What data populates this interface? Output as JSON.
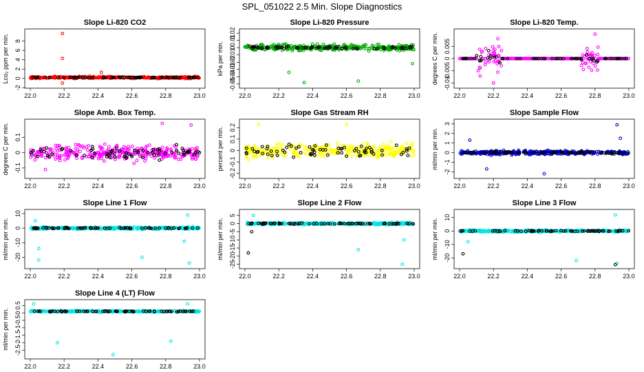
{
  "page_title": "SPL_051022  2.5 Min. Slope Diagnostics",
  "colors": {
    "black": "#000000"
  },
  "chart_data": [
    {
      "type": "scatter",
      "title": "Slope Li-820 CO2",
      "xlabel": "",
      "ylabel": "Lco₂ ppm per min.",
      "xlim": [
        22.0,
        23.0
      ],
      "ylim": [
        -1.5,
        10.0
      ],
      "xticks": [
        "22.0",
        "22.2",
        "22.4",
        "22.6",
        "22.8",
        "23.0"
      ],
      "yticks": [
        -2,
        0,
        2,
        4,
        6,
        8
      ],
      "series": [
        {
          "color": "#ff0000",
          "spread": 0.35,
          "center": 0.2,
          "points": [
            [
              22.19,
              9.6
            ],
            [
              22.19,
              4.3
            ],
            [
              22.19,
              -1.0
            ],
            [
              22.42,
              1.3
            ]
          ]
        },
        {
          "color": "#000000",
          "spread": 0.15,
          "center": 0.2,
          "points": []
        }
      ]
    },
    {
      "type": "scatter",
      "title": "Slope Li-820 Pressure",
      "xlabel": "",
      "ylabel": "kPa per min.",
      "xlim": [
        22.0,
        23.0
      ],
      "ylim": [
        -0.052,
        0.022
      ],
      "xticks": [
        "22.0",
        "22.2",
        "22.4",
        "22.6",
        "22.8",
        "23.0"
      ],
      "yticks": [
        -0.05,
        -0.04,
        -0.03,
        -0.02,
        -0.01,
        0.0,
        0.01,
        0.02
      ],
      "series": [
        {
          "color": "#00aa00",
          "spread": 0.007,
          "center": 0.0,
          "points": [
            [
              22.35,
              -0.048
            ],
            [
              22.67,
              -0.046
            ],
            [
              22.26,
              -0.034
            ],
            [
              22.99,
              -0.022
            ]
          ]
        },
        {
          "color": "#000000",
          "spread": 0.003,
          "center": 0.0,
          "points": []
        }
      ]
    },
    {
      "type": "scatter",
      "title": "Slope Li-820 Temp.",
      "xlabel": "",
      "ylabel": "degrees C per min.",
      "xlim": [
        22.0,
        23.0
      ],
      "ylim": [
        -0.011,
        0.011
      ],
      "xticks": [
        "22.0",
        "22.2",
        "22.4",
        "22.6",
        "22.8",
        "23.0"
      ],
      "yticks": [
        -0.01,
        -0.005,
        0.0,
        0.005
      ],
      "series": [
        {
          "color": "#ff00ff",
          "spread": 0.0,
          "center": 0.0,
          "bursts": [
            [
              22.1,
              22.25,
              0.005
            ],
            [
              22.72,
              22.82,
              0.004
            ]
          ],
          "points": [
            [
              22.2,
              -0.01
            ],
            [
              22.8,
              0.01
            ]
          ]
        },
        {
          "color": "#000000",
          "spread": 0.0,
          "center": 0.0,
          "bursts": [
            [
              22.1,
              22.25,
              0.002
            ],
            [
              22.72,
              22.82,
              0.002
            ]
          ],
          "points": []
        }
      ]
    },
    {
      "type": "scatter",
      "title": "Slope Amb. Box Temp.",
      "xlabel": "",
      "ylabel": "degrees C per min.",
      "xlim": [
        22.0,
        23.0
      ],
      "ylim": [
        -0.15,
        0.2
      ],
      "xticks": [
        "22.0",
        "22.2",
        "22.4",
        "22.6",
        "22.8",
        "23.0"
      ],
      "yticks": [
        -0.1,
        0.0,
        0.1
      ],
      "series": [
        {
          "color": "#ff00ff",
          "spread": 0.08,
          "center": 0.0,
          "points": [
            [
              22.78,
              0.19
            ],
            [
              22.95,
              0.18
            ],
            [
              22.09,
              -0.11
            ]
          ]
        },
        {
          "color": "#000000",
          "spread": 0.07,
          "center": 0.0,
          "points": []
        }
      ]
    },
    {
      "type": "scatter",
      "title": "Slope Gas Stream RH",
      "xlabel": "",
      "ylabel": "percent per min.",
      "xlim": [
        22.0,
        23.0
      ],
      "ylim": [
        -0.22,
        0.25
      ],
      "xticks": [
        "22.0",
        "22.2",
        "22.4",
        "22.6",
        "22.8",
        "23.0"
      ],
      "yticks": [
        -0.2,
        -0.1,
        0.0,
        0.1,
        0.2
      ],
      "series": [
        {
          "color": "#ffff00",
          "spread": 0.1,
          "center": 0.0,
          "points": [
            [
              22.08,
              0.23
            ],
            [
              22.6,
              0.23
            ]
          ]
        },
        {
          "color": "#000000",
          "spread": 0.1,
          "center": 0.0,
          "points": []
        }
      ]
    },
    {
      "type": "scatter",
      "title": "Slope Sample Flow",
      "xlabel": "",
      "ylabel": "ml/min per min.",
      "xlim": [
        22.0,
        23.0
      ],
      "ylim": [
        -2.4,
        3.2
      ],
      "xticks": [
        "22.0",
        "22.2",
        "22.4",
        "22.6",
        "22.8",
        "23.0"
      ],
      "yticks": [
        -2,
        -1,
        0,
        1,
        2,
        3
      ],
      "series": [
        {
          "color": "#0000cc",
          "spread": 0.35,
          "center": 0.0,
          "points": [
            [
              22.93,
              2.9
            ],
            [
              22.5,
              -2.2
            ],
            [
              22.16,
              -1.7
            ],
            [
              22.06,
              1.3
            ],
            [
              22.95,
              1.5
            ]
          ]
        },
        {
          "color": "#000000",
          "spread": 0.2,
          "center": 0.0,
          "points": []
        }
      ]
    },
    {
      "type": "scatter",
      "title": "Slope Line 1 Flow",
      "xlabel": "",
      "ylabel": "ml/min per min.",
      "xlim": [
        22.0,
        23.0
      ],
      "ylim": [
        -26,
        11
      ],
      "xticks": [
        "22.0",
        "22.2",
        "22.4",
        "22.6",
        "22.8",
        "23.0"
      ],
      "yticks": [
        -20,
        -10,
        0,
        10
      ],
      "series": [
        {
          "color": "#00e5e5",
          "spread": 1.2,
          "center": 0.0,
          "points": [
            [
              22.05,
              -22
            ],
            [
              22.94,
              -24
            ],
            [
              22.66,
              -20
            ],
            [
              22.05,
              -14
            ],
            [
              22.93,
              9
            ],
            [
              22.03,
              5
            ],
            [
              22.91,
              -9
            ]
          ]
        },
        {
          "color": "#000000",
          "spread": 0.5,
          "center": 0.0,
          "points": []
        }
      ]
    },
    {
      "type": "scatter",
      "title": "Slope Line 2 Flow",
      "xlabel": "",
      "ylabel": "ml/min per min.",
      "xlim": [
        22.0,
        23.0
      ],
      "ylim": [
        -26,
        7
      ],
      "xticks": [
        "22.0",
        "22.2",
        "22.4",
        "22.6",
        "22.8",
        "23.0"
      ],
      "yticks": [
        -25,
        -20,
        -15,
        -10,
        -5,
        0,
        5
      ],
      "series": [
        {
          "color": "#00e5e5",
          "spread": 1.2,
          "center": 0.0,
          "points": [
            [
              22.93,
              -25
            ],
            [
              22.67,
              -16
            ],
            [
              22.05,
              5
            ],
            [
              22.94,
              -10
            ]
          ]
        },
        {
          "color": "#000000",
          "spread": 0.6,
          "center": 0.0,
          "points": [
            [
              22.02,
              -18
            ],
            [
              22.04,
              -5
            ]
          ]
        }
      ]
    },
    {
      "type": "scatter",
      "title": "Slope Line 3 Flow",
      "xlabel": "",
      "ylabel": "ml/min per min.",
      "xlim": [
        22.0,
        23.0
      ],
      "ylim": [
        -26,
        14
      ],
      "xticks": [
        "22.0",
        "22.2",
        "22.4",
        "22.6",
        "22.8",
        "23.0"
      ],
      "yticks": [
        -20,
        -10,
        0,
        10
      ],
      "series": [
        {
          "color": "#00e5e5",
          "spread": 1.4,
          "center": 0.0,
          "points": [
            [
              22.93,
              -24
            ],
            [
              22.69,
              -22
            ],
            [
              22.92,
              12
            ],
            [
              22.05,
              -8
            ]
          ]
        },
        {
          "color": "#000000",
          "spread": 0.6,
          "center": 0.0,
          "points": [
            [
              22.02,
              -17
            ],
            [
              22.92,
              -25
            ]
          ]
        }
      ]
    },
    {
      "type": "scatter",
      "title": "Slope Line 4 (LT) Flow",
      "xlabel": "",
      "ylabel": "ml/min per min.",
      "xlim": [
        22.0,
        23.0
      ],
      "ylim": [
        -2.9,
        0.7
      ],
      "xticks": [
        "22.0",
        "22.2",
        "22.4",
        "22.6",
        "22.8",
        "23.0"
      ],
      "yticks": [
        -2.5,
        -2.0,
        -1.5,
        -1.0,
        -0.5,
        0.0,
        0.5
      ],
      "series": [
        {
          "color": "#00e5e5",
          "spread": 0.08,
          "center": 0.1,
          "points": [
            [
              22.16,
              -2.0
            ],
            [
              22.49,
              -2.8
            ],
            [
              22.83,
              -1.9
            ],
            [
              22.02,
              0.6
            ],
            [
              22.93,
              0.6
            ]
          ]
        },
        {
          "color": "#000000",
          "spread": 0.05,
          "center": 0.1,
          "points": []
        }
      ]
    }
  ]
}
